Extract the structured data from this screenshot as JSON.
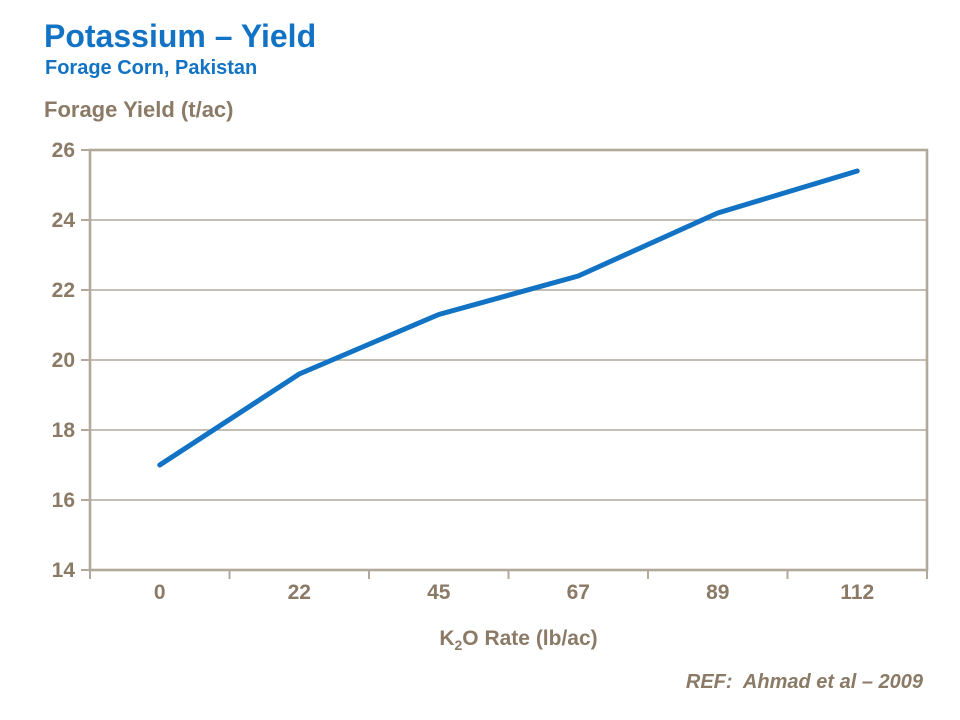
{
  "header": {
    "title": "Potassium – Yield",
    "subtitle": "Forage Corn, Pakistan"
  },
  "footer": {
    "reference": "REF:  Ahmad et al – 2009"
  },
  "colors": {
    "accent_blue": "#1273C4",
    "line_blue": "#1273C4",
    "axis_text_brown": "#8A7A66",
    "grid_line": "#B2A89B",
    "background": "#FFFFFF"
  },
  "chart_data": {
    "type": "line",
    "title": "Potassium – Yield",
    "subtitle": "Forage Corn, Pakistan",
    "categories": [
      "0",
      "22",
      "45",
      "67",
      "89",
      "112"
    ],
    "series": [
      {
        "name": "Forage Yield",
        "values": [
          17.0,
          19.6,
          21.3,
          22.4,
          24.2,
          25.4
        ]
      }
    ],
    "ylabel": "Forage Yield (t/ac)",
    "xlabel": "K2O Rate (lb/ac)",
    "xlabel_parts": {
      "main": "K",
      "sub": "2",
      "rest": "O Rate (lb/ac)"
    },
    "ylim": [
      14,
      26
    ],
    "y_ticks": [
      14,
      16,
      18,
      20,
      22,
      24,
      26
    ],
    "grid": "horizontal",
    "legend": "none",
    "marker": "none"
  }
}
